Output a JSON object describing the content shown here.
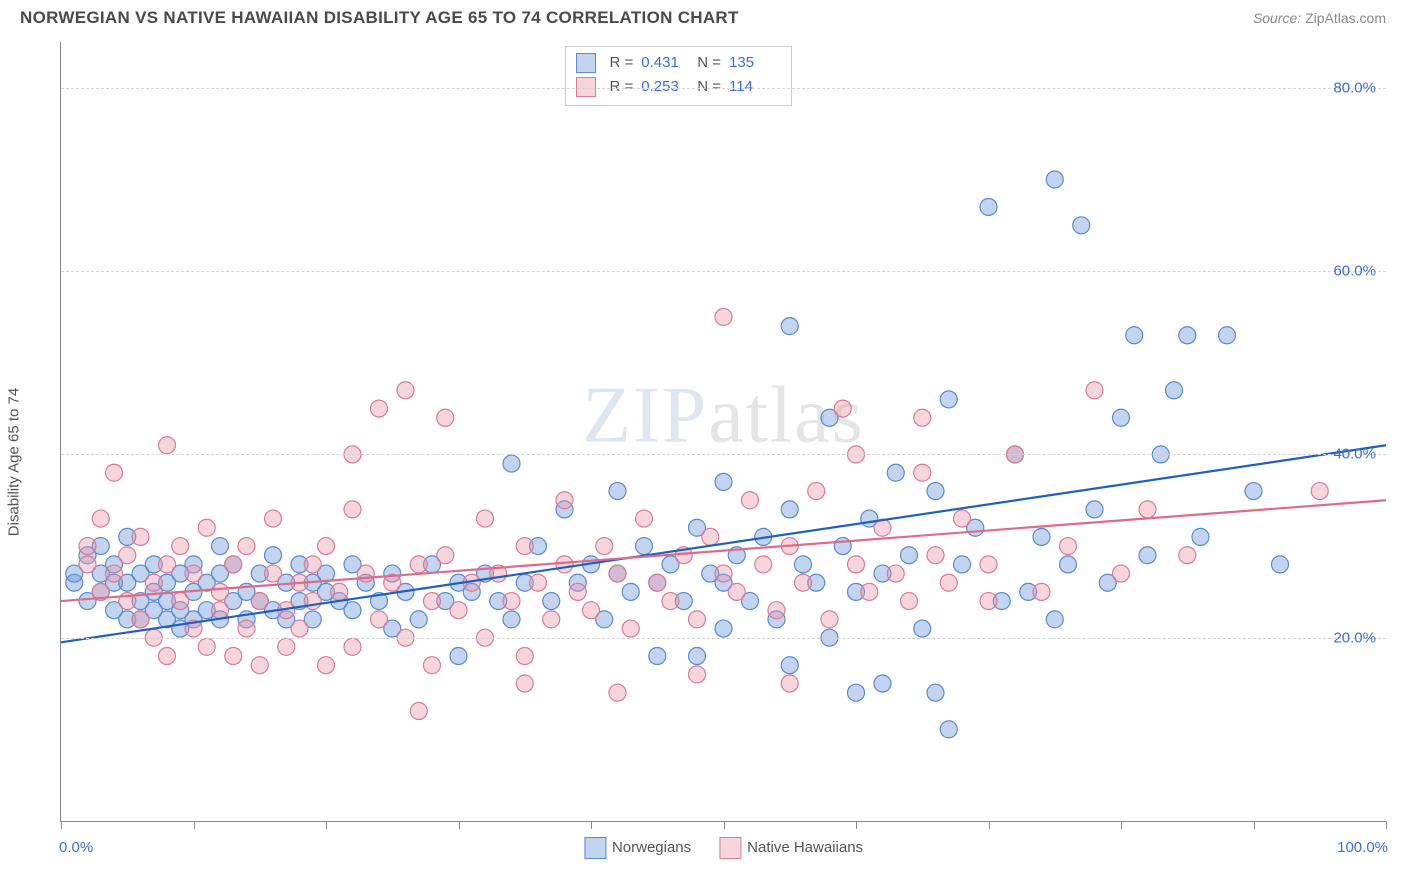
{
  "header": {
    "title": "NORWEGIAN VS NATIVE HAWAIIAN DISABILITY AGE 65 TO 74 CORRELATION CHART",
    "source_prefix": "Source: ",
    "source_name": "ZipAtlas.com"
  },
  "chart": {
    "type": "scatter",
    "ylabel": "Disability Age 65 to 74",
    "xlim": [
      0,
      100
    ],
    "ylim": [
      0,
      85
    ],
    "yticks": [
      20,
      40,
      60,
      80
    ],
    "ytick_labels": [
      "20.0%",
      "40.0%",
      "60.0%",
      "80.0%"
    ],
    "xticks": [
      0,
      10,
      20,
      30,
      40,
      50,
      60,
      70,
      80,
      90,
      100
    ],
    "x_left_label": "0.0%",
    "x_right_label": "100.0%",
    "background_color": "#ffffff",
    "grid_color": "#d5d5d5",
    "axis_color": "#888888",
    "tick_label_color": "#3b6fd6",
    "watermark_main": "ZIP",
    "watermark_sub": "atlas",
    "marker_radius": 8.5,
    "marker_stroke_width": 1.2,
    "line_width": 2.2,
    "series": [
      {
        "name": "Norwegians",
        "fill": "rgba(120,160,220,0.45)",
        "stroke": "#5a8ad4",
        "line_color": "#1f5fc4",
        "regression": {
          "x1": 0,
          "y1": 19.5,
          "x2": 100,
          "y2": 41.0
        },
        "stats": {
          "R": "0.431",
          "N": "135"
        },
        "points": [
          [
            1,
            26
          ],
          [
            1,
            27
          ],
          [
            2,
            24
          ],
          [
            2,
            29
          ],
          [
            3,
            27
          ],
          [
            3,
            25
          ],
          [
            3,
            30
          ],
          [
            4,
            23
          ],
          [
            4,
            26
          ],
          [
            4,
            28
          ],
          [
            5,
            22
          ],
          [
            5,
            26
          ],
          [
            5,
            31
          ],
          [
            6,
            24
          ],
          [
            6,
            27
          ],
          [
            6,
            22
          ],
          [
            7,
            23
          ],
          [
            7,
            25
          ],
          [
            7,
            28
          ],
          [
            8,
            22
          ],
          [
            8,
            26
          ],
          [
            8,
            24
          ],
          [
            9,
            23
          ],
          [
            9,
            27
          ],
          [
            9,
            21
          ],
          [
            10,
            22
          ],
          [
            10,
            25
          ],
          [
            10,
            28
          ],
          [
            11,
            23
          ],
          [
            11,
            26
          ],
          [
            12,
            22
          ],
          [
            12,
            27
          ],
          [
            12,
            30
          ],
          [
            13,
            24
          ],
          [
            13,
            28
          ],
          [
            14,
            22
          ],
          [
            14,
            25
          ],
          [
            15,
            24
          ],
          [
            15,
            27
          ],
          [
            16,
            23
          ],
          [
            16,
            29
          ],
          [
            17,
            22
          ],
          [
            17,
            26
          ],
          [
            18,
            24
          ],
          [
            18,
            28
          ],
          [
            19,
            26
          ],
          [
            19,
            22
          ],
          [
            20,
            25
          ],
          [
            20,
            27
          ],
          [
            21,
            24
          ],
          [
            22,
            23
          ],
          [
            22,
            28
          ],
          [
            23,
            26
          ],
          [
            24,
            24
          ],
          [
            25,
            27
          ],
          [
            25,
            21
          ],
          [
            26,
            25
          ],
          [
            27,
            22
          ],
          [
            28,
            28
          ],
          [
            29,
            24
          ],
          [
            30,
            26
          ],
          [
            30,
            18
          ],
          [
            31,
            25
          ],
          [
            32,
            27
          ],
          [
            33,
            24
          ],
          [
            34,
            39
          ],
          [
            34,
            22
          ],
          [
            35,
            26
          ],
          [
            36,
            30
          ],
          [
            37,
            24
          ],
          [
            38,
            34
          ],
          [
            39,
            26
          ],
          [
            40,
            28
          ],
          [
            41,
            22
          ],
          [
            42,
            27
          ],
          [
            42,
            36
          ],
          [
            43,
            25
          ],
          [
            44,
            30
          ],
          [
            45,
            26
          ],
          [
            46,
            28
          ],
          [
            47,
            24
          ],
          [
            48,
            32
          ],
          [
            48,
            18
          ],
          [
            49,
            27
          ],
          [
            50,
            26
          ],
          [
            50,
            37
          ],
          [
            51,
            29
          ],
          [
            52,
            24
          ],
          [
            53,
            31
          ],
          [
            54,
            22
          ],
          [
            55,
            34
          ],
          [
            55,
            54
          ],
          [
            56,
            28
          ],
          [
            57,
            26
          ],
          [
            58,
            44
          ],
          [
            59,
            30
          ],
          [
            60,
            25
          ],
          [
            60,
            14
          ],
          [
            61,
            33
          ],
          [
            62,
            27
          ],
          [
            63,
            38
          ],
          [
            64,
            29
          ],
          [
            65,
            21
          ],
          [
            66,
            36
          ],
          [
            66,
            14
          ],
          [
            67,
            46
          ],
          [
            68,
            28
          ],
          [
            69,
            32
          ],
          [
            70,
            67
          ],
          [
            71,
            24
          ],
          [
            72,
            40
          ],
          [
            73,
            25
          ],
          [
            74,
            31
          ],
          [
            75,
            22
          ],
          [
            75,
            70
          ],
          [
            76,
            28
          ],
          [
            77,
            65
          ],
          [
            78,
            34
          ],
          [
            79,
            26
          ],
          [
            80,
            44
          ],
          [
            81,
            53
          ],
          [
            82,
            29
          ],
          [
            83,
            40
          ],
          [
            84,
            47
          ],
          [
            85,
            53
          ],
          [
            86,
            31
          ],
          [
            88,
            53
          ],
          [
            90,
            36
          ],
          [
            92,
            28
          ],
          [
            62,
            15
          ],
          [
            55,
            17
          ],
          [
            58,
            20
          ],
          [
            45,
            18
          ],
          [
            50,
            21
          ],
          [
            67,
            10
          ]
        ]
      },
      {
        "name": "Native Hawaiians",
        "fill": "rgba(235,150,170,0.40)",
        "stroke": "#d97c96",
        "line_color": "#e06a8a",
        "regression": {
          "x1": 0,
          "y1": 24.0,
          "x2": 100,
          "y2": 35.0
        },
        "stats": {
          "R": "0.253",
          "N": "114"
        },
        "points": [
          [
            2,
            28
          ],
          [
            2,
            30
          ],
          [
            3,
            25
          ],
          [
            3,
            33
          ],
          [
            4,
            27
          ],
          [
            4,
            38
          ],
          [
            5,
            24
          ],
          [
            5,
            29
          ],
          [
            6,
            22
          ],
          [
            6,
            31
          ],
          [
            7,
            20
          ],
          [
            7,
            26
          ],
          [
            8,
            18
          ],
          [
            8,
            28
          ],
          [
            8,
            41
          ],
          [
            9,
            24
          ],
          [
            9,
            30
          ],
          [
            10,
            21
          ],
          [
            10,
            27
          ],
          [
            11,
            19
          ],
          [
            11,
            32
          ],
          [
            12,
            25
          ],
          [
            12,
            23
          ],
          [
            13,
            18
          ],
          [
            13,
            28
          ],
          [
            14,
            21
          ],
          [
            14,
            30
          ],
          [
            15,
            24
          ],
          [
            15,
            17
          ],
          [
            16,
            27
          ],
          [
            16,
            33
          ],
          [
            17,
            23
          ],
          [
            17,
            19
          ],
          [
            18,
            26
          ],
          [
            18,
            21
          ],
          [
            19,
            28
          ],
          [
            19,
            24
          ],
          [
            20,
            17
          ],
          [
            20,
            30
          ],
          [
            21,
            25
          ],
          [
            22,
            19
          ],
          [
            22,
            34
          ],
          [
            23,
            27
          ],
          [
            24,
            22
          ],
          [
            24,
            45
          ],
          [
            25,
            26
          ],
          [
            26,
            20
          ],
          [
            26,
            47
          ],
          [
            27,
            28
          ],
          [
            28,
            17
          ],
          [
            28,
            24
          ],
          [
            29,
            44
          ],
          [
            29,
            29
          ],
          [
            30,
            23
          ],
          [
            31,
            26
          ],
          [
            32,
            20
          ],
          [
            32,
            33
          ],
          [
            33,
            27
          ],
          [
            34,
            24
          ],
          [
            35,
            30
          ],
          [
            35,
            18
          ],
          [
            36,
            26
          ],
          [
            37,
            22
          ],
          [
            38,
            28
          ],
          [
            38,
            35
          ],
          [
            39,
            25
          ],
          [
            40,
            23
          ],
          [
            41,
            30
          ],
          [
            42,
            27
          ],
          [
            43,
            21
          ],
          [
            44,
            33
          ],
          [
            45,
            26
          ],
          [
            46,
            24
          ],
          [
            47,
            29
          ],
          [
            48,
            22
          ],
          [
            49,
            31
          ],
          [
            50,
            55
          ],
          [
            50,
            27
          ],
          [
            51,
            25
          ],
          [
            52,
            35
          ],
          [
            53,
            28
          ],
          [
            54,
            23
          ],
          [
            55,
            30
          ],
          [
            56,
            26
          ],
          [
            57,
            36
          ],
          [
            58,
            22
          ],
          [
            59,
            45
          ],
          [
            60,
            28
          ],
          [
            61,
            25
          ],
          [
            62,
            32
          ],
          [
            63,
            27
          ],
          [
            64,
            24
          ],
          [
            65,
            38
          ],
          [
            66,
            29
          ],
          [
            67,
            26
          ],
          [
            68,
            33
          ],
          [
            70,
            28
          ],
          [
            72,
            40
          ],
          [
            74,
            25
          ],
          [
            76,
            30
          ],
          [
            78,
            47
          ],
          [
            80,
            27
          ],
          [
            82,
            34
          ],
          [
            85,
            29
          ],
          [
            27,
            12
          ],
          [
            35,
            15
          ],
          [
            42,
            14
          ],
          [
            48,
            16
          ],
          [
            55,
            15
          ],
          [
            95,
            36
          ],
          [
            70,
            24
          ],
          [
            65,
            44
          ],
          [
            60,
            40
          ],
          [
            22,
            40
          ]
        ]
      }
    ],
    "bottom_legend": [
      {
        "label": "Norwegians",
        "series": 0
      },
      {
        "label": "Native Hawaiians",
        "series": 1
      }
    ]
  }
}
